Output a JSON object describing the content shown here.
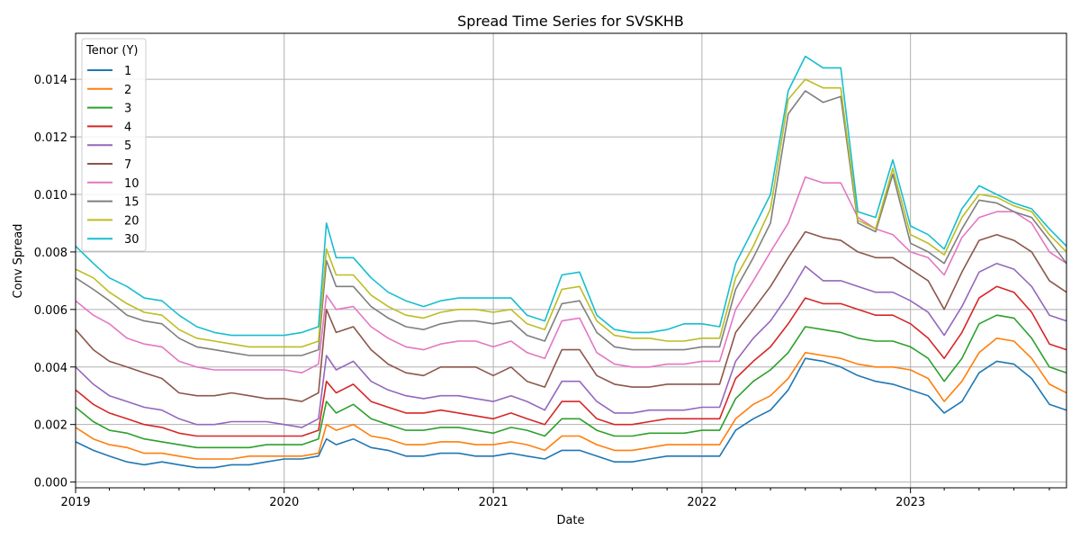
{
  "chart_data": {
    "type": "line",
    "title": "Spread Time Series for SVSKHB",
    "xlabel": "Date",
    "ylabel": "Conv Spread",
    "legend_title": "Tenor (Y)",
    "legend_placement": "top-left",
    "grid": true,
    "xlim": [
      "2019-01-01",
      "2023-10-01"
    ],
    "ylim": [
      -0.0002,
      0.0156
    ],
    "x_ticks": [
      "2019-01-01",
      "2020-01-01",
      "2021-01-01",
      "2022-01-01",
      "2023-01-01"
    ],
    "x_tick_labels": [
      "2019",
      "2020",
      "2021",
      "2022",
      "2023"
    ],
    "y_ticks": [
      0.0,
      0.002,
      0.004,
      0.006,
      0.008,
      0.01,
      0.012,
      0.014
    ],
    "y_tick_labels": [
      "0.000",
      "0.002",
      "0.004",
      "0.006",
      "0.008",
      "0.010",
      "0.012",
      "0.014"
    ],
    "x": [
      "2019-01-01",
      "2019-02-01",
      "2019-03-01",
      "2019-04-01",
      "2019-05-01",
      "2019-06-01",
      "2019-07-01",
      "2019-08-01",
      "2019-09-01",
      "2019-10-01",
      "2019-11-01",
      "2019-12-01",
      "2020-01-01",
      "2020-02-01",
      "2020-03-01",
      "2020-03-15",
      "2020-04-01",
      "2020-05-01",
      "2020-06-01",
      "2020-07-01",
      "2020-08-01",
      "2020-09-01",
      "2020-10-01",
      "2020-11-01",
      "2020-12-01",
      "2021-01-01",
      "2021-02-01",
      "2021-03-01",
      "2021-04-01",
      "2021-05-01",
      "2021-06-01",
      "2021-07-01",
      "2021-08-01",
      "2021-09-01",
      "2021-10-01",
      "2021-11-01",
      "2021-12-01",
      "2022-01-01",
      "2022-02-01",
      "2022-03-01",
      "2022-04-01",
      "2022-05-01",
      "2022-06-01",
      "2022-07-01",
      "2022-08-01",
      "2022-09-01",
      "2022-10-01",
      "2022-11-01",
      "2022-12-01",
      "2023-01-01",
      "2023-02-01",
      "2023-03-01",
      "2023-04-01",
      "2023-05-01",
      "2023-06-01",
      "2023-07-01",
      "2023-08-01",
      "2023-09-01",
      "2023-10-01"
    ],
    "series": [
      {
        "name": "1",
        "color": "#1f77b4",
        "values": [
          0.0014,
          0.0011,
          0.0009,
          0.0007,
          0.0006,
          0.0007,
          0.0006,
          0.0005,
          0.0005,
          0.0006,
          0.0006,
          0.0007,
          0.0008,
          0.0008,
          0.0009,
          0.0015,
          0.0013,
          0.0015,
          0.0012,
          0.0011,
          0.0009,
          0.0009,
          0.001,
          0.001,
          0.0009,
          0.0009,
          0.001,
          0.0009,
          0.0008,
          0.0011,
          0.0011,
          0.0009,
          0.0007,
          0.0007,
          0.0008,
          0.0009,
          0.0009,
          0.0009,
          0.0009,
          0.0018,
          0.0022,
          0.0025,
          0.0032,
          0.0043,
          0.0042,
          0.004,
          0.0037,
          0.0035,
          0.0034,
          0.0032,
          0.003,
          0.0024,
          0.0028,
          0.0038,
          0.0042,
          0.0041,
          0.0036,
          0.0027,
          0.0025
        ]
      },
      {
        "name": "2",
        "color": "#ff7f0e",
        "values": [
          0.0019,
          0.0015,
          0.0013,
          0.0012,
          0.001,
          0.001,
          0.0009,
          0.0008,
          0.0008,
          0.0008,
          0.0009,
          0.0009,
          0.0009,
          0.0009,
          0.001,
          0.002,
          0.0018,
          0.002,
          0.0016,
          0.0015,
          0.0013,
          0.0013,
          0.0014,
          0.0014,
          0.0013,
          0.0013,
          0.0014,
          0.0013,
          0.0011,
          0.0016,
          0.0016,
          0.0013,
          0.0011,
          0.0011,
          0.0012,
          0.0013,
          0.0013,
          0.0013,
          0.0013,
          0.0022,
          0.0027,
          0.003,
          0.0036,
          0.0045,
          0.0044,
          0.0043,
          0.0041,
          0.004,
          0.004,
          0.0039,
          0.0036,
          0.0028,
          0.0035,
          0.0045,
          0.005,
          0.0049,
          0.0043,
          0.0034,
          0.0031
        ]
      },
      {
        "name": "3",
        "color": "#2ca02c",
        "values": [
          0.0026,
          0.0021,
          0.0018,
          0.0017,
          0.0015,
          0.0014,
          0.0013,
          0.0012,
          0.0012,
          0.0012,
          0.0012,
          0.0013,
          0.0013,
          0.0013,
          0.0015,
          0.0028,
          0.0024,
          0.0027,
          0.0022,
          0.002,
          0.0018,
          0.0018,
          0.0019,
          0.0019,
          0.0018,
          0.0017,
          0.0019,
          0.0018,
          0.0016,
          0.0022,
          0.0022,
          0.0018,
          0.0016,
          0.0016,
          0.0017,
          0.0017,
          0.0017,
          0.0018,
          0.0018,
          0.0029,
          0.0035,
          0.0039,
          0.0045,
          0.0054,
          0.0053,
          0.0052,
          0.005,
          0.0049,
          0.0049,
          0.0047,
          0.0043,
          0.0035,
          0.0043,
          0.0055,
          0.0058,
          0.0057,
          0.005,
          0.004,
          0.0038
        ]
      },
      {
        "name": "4",
        "color": "#d62728",
        "values": [
          0.0032,
          0.0027,
          0.0024,
          0.0022,
          0.002,
          0.0019,
          0.0017,
          0.0016,
          0.0016,
          0.0016,
          0.0016,
          0.0016,
          0.0016,
          0.0016,
          0.0018,
          0.0035,
          0.0031,
          0.0034,
          0.0028,
          0.0026,
          0.0024,
          0.0024,
          0.0025,
          0.0024,
          0.0023,
          0.0022,
          0.0024,
          0.0022,
          0.002,
          0.0028,
          0.0028,
          0.0022,
          0.002,
          0.002,
          0.0021,
          0.0022,
          0.0022,
          0.0022,
          0.0022,
          0.0036,
          0.0042,
          0.0047,
          0.0055,
          0.0064,
          0.0062,
          0.0062,
          0.006,
          0.0058,
          0.0058,
          0.0055,
          0.005,
          0.0043,
          0.0052,
          0.0064,
          0.0068,
          0.0066,
          0.0059,
          0.0048,
          0.0046
        ]
      },
      {
        "name": "5",
        "color": "#9467bd",
        "values": [
          0.004,
          0.0034,
          0.003,
          0.0028,
          0.0026,
          0.0025,
          0.0022,
          0.002,
          0.002,
          0.0021,
          0.0021,
          0.0021,
          0.002,
          0.0019,
          0.0022,
          0.0044,
          0.0039,
          0.0042,
          0.0035,
          0.0032,
          0.003,
          0.0029,
          0.003,
          0.003,
          0.0029,
          0.0028,
          0.003,
          0.0028,
          0.0025,
          0.0035,
          0.0035,
          0.0028,
          0.0024,
          0.0024,
          0.0025,
          0.0025,
          0.0025,
          0.0026,
          0.0026,
          0.0042,
          0.005,
          0.0056,
          0.0065,
          0.0075,
          0.007,
          0.007,
          0.0068,
          0.0066,
          0.0066,
          0.0063,
          0.0059,
          0.0051,
          0.0061,
          0.0073,
          0.0076,
          0.0074,
          0.0068,
          0.0058,
          0.0056
        ]
      },
      {
        "name": "7",
        "color": "#8c564b",
        "values": [
          0.0053,
          0.0046,
          0.0042,
          0.004,
          0.0038,
          0.0036,
          0.0031,
          0.003,
          0.003,
          0.0031,
          0.003,
          0.0029,
          0.0029,
          0.0028,
          0.0031,
          0.006,
          0.0052,
          0.0054,
          0.0046,
          0.0041,
          0.0038,
          0.0037,
          0.004,
          0.004,
          0.004,
          0.0037,
          0.004,
          0.0035,
          0.0033,
          0.0046,
          0.0046,
          0.0037,
          0.0034,
          0.0033,
          0.0033,
          0.0034,
          0.0034,
          0.0034,
          0.0034,
          0.0052,
          0.006,
          0.0068,
          0.0078,
          0.0087,
          0.0085,
          0.0084,
          0.008,
          0.0078,
          0.0078,
          0.0074,
          0.007,
          0.006,
          0.0073,
          0.0084,
          0.0086,
          0.0084,
          0.008,
          0.007,
          0.0066
        ]
      },
      {
        "name": "10",
        "color": "#e377c2",
        "values": [
          0.0063,
          0.0058,
          0.0055,
          0.005,
          0.0048,
          0.0047,
          0.0042,
          0.004,
          0.0039,
          0.0039,
          0.0039,
          0.0039,
          0.0039,
          0.0038,
          0.0041,
          0.0065,
          0.006,
          0.0061,
          0.0054,
          0.005,
          0.0047,
          0.0046,
          0.0048,
          0.0049,
          0.0049,
          0.0047,
          0.0049,
          0.0045,
          0.0043,
          0.0056,
          0.0057,
          0.0045,
          0.0041,
          0.004,
          0.004,
          0.0041,
          0.0041,
          0.0042,
          0.0042,
          0.006,
          0.007,
          0.008,
          0.009,
          0.0106,
          0.0104,
          0.0104,
          0.0092,
          0.0088,
          0.0086,
          0.008,
          0.0078,
          0.0072,
          0.0085,
          0.0092,
          0.0094,
          0.0094,
          0.009,
          0.008,
          0.0076
        ]
      },
      {
        "name": "15",
        "color": "#7f7f7f",
        "values": [
          0.0071,
          0.0067,
          0.0063,
          0.0058,
          0.0056,
          0.0055,
          0.005,
          0.0047,
          0.0046,
          0.0045,
          0.0044,
          0.0044,
          0.0044,
          0.0044,
          0.0046,
          0.0077,
          0.0068,
          0.0068,
          0.0061,
          0.0057,
          0.0054,
          0.0053,
          0.0055,
          0.0056,
          0.0056,
          0.0055,
          0.0056,
          0.0051,
          0.0049,
          0.0062,
          0.0063,
          0.0052,
          0.0047,
          0.0046,
          0.0046,
          0.0046,
          0.0046,
          0.0047,
          0.0047,
          0.0067,
          0.0078,
          0.009,
          0.0128,
          0.0136,
          0.0132,
          0.0134,
          0.009,
          0.0087,
          0.0107,
          0.0083,
          0.008,
          0.0076,
          0.0088,
          0.0098,
          0.0097,
          0.0094,
          0.0092,
          0.0084,
          0.0076
        ]
      },
      {
        "name": "20",
        "color": "#bcbd22",
        "values": [
          0.0074,
          0.0071,
          0.0066,
          0.0062,
          0.0059,
          0.0058,
          0.0053,
          0.005,
          0.0049,
          0.0048,
          0.0047,
          0.0047,
          0.0047,
          0.0047,
          0.0049,
          0.0081,
          0.0072,
          0.0072,
          0.0065,
          0.0061,
          0.0058,
          0.0057,
          0.0059,
          0.006,
          0.006,
          0.0059,
          0.006,
          0.0055,
          0.0053,
          0.0067,
          0.0068,
          0.0056,
          0.0051,
          0.005,
          0.005,
          0.0049,
          0.0049,
          0.005,
          0.005,
          0.0071,
          0.0082,
          0.0095,
          0.0133,
          0.014,
          0.0137,
          0.0137,
          0.0091,
          0.0088,
          0.0109,
          0.0086,
          0.0083,
          0.0079,
          0.0092,
          0.01,
          0.0099,
          0.0096,
          0.0094,
          0.0086,
          0.008
        ]
      },
      {
        "name": "30",
        "color": "#17becf",
        "values": [
          0.0082,
          0.0076,
          0.0071,
          0.0068,
          0.0064,
          0.0063,
          0.0058,
          0.0054,
          0.0052,
          0.0051,
          0.0051,
          0.0051,
          0.0051,
          0.0052,
          0.0054,
          0.009,
          0.0078,
          0.0078,
          0.0071,
          0.0066,
          0.0063,
          0.0061,
          0.0063,
          0.0064,
          0.0064,
          0.0064,
          0.0064,
          0.0058,
          0.0056,
          0.0072,
          0.0073,
          0.0058,
          0.0053,
          0.0052,
          0.0052,
          0.0053,
          0.0055,
          0.0055,
          0.0054,
          0.0076,
          0.0088,
          0.01,
          0.0136,
          0.0148,
          0.0144,
          0.0144,
          0.0094,
          0.0092,
          0.0112,
          0.0089,
          0.0086,
          0.0081,
          0.0095,
          0.0103,
          0.01,
          0.0097,
          0.0095,
          0.0088,
          0.0082
        ]
      }
    ]
  }
}
